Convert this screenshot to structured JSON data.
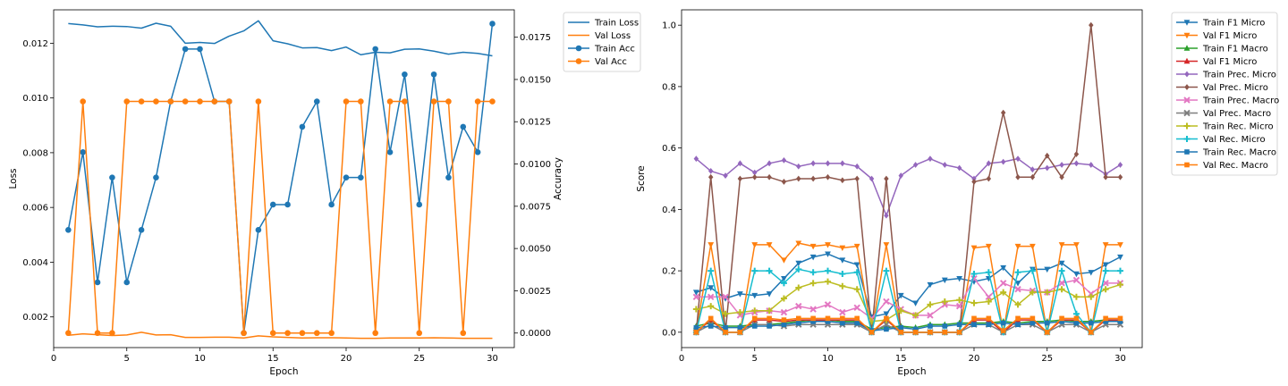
{
  "chart_data": [
    {
      "type": "line",
      "xlabel": "Epoch",
      "ylabel": "Loss",
      "y2label": "Accuracy",
      "xlim": [
        0,
        31.5
      ],
      "ylim": [
        0.00088,
        0.01322
      ],
      "y2lim": [
        -0.00086,
        0.01912
      ],
      "xticks": [
        "0",
        "5",
        "10",
        "15",
        "20",
        "25",
        "30"
      ],
      "yticks": [
        "0.002",
        "0.004",
        "0.006",
        "0.008",
        "0.010",
        "0.012"
      ],
      "y2ticks": [
        "0.0000",
        "0.0025",
        "0.0050",
        "0.0075",
        "0.0100",
        "0.0125",
        "0.0150",
        "0.0175"
      ],
      "legend_position": "outside-top-right",
      "x": [
        1,
        2,
        3,
        4,
        5,
        6,
        7,
        8,
        9,
        10,
        11,
        12,
        13,
        14,
        15,
        16,
        17,
        18,
        19,
        20,
        21,
        22,
        23,
        24,
        25,
        26,
        27,
        28,
        29,
        30
      ],
      "series": [
        {
          "name": "Train Loss",
          "axis": "left",
          "marker": "none",
          "color": "#1f77b4",
          "values": [
            0.01272,
            0.01267,
            0.0126,
            0.01262,
            0.01261,
            0.01255,
            0.01273,
            0.01262,
            0.012,
            0.01203,
            0.01199,
            0.01226,
            0.01245,
            0.01282,
            0.01209,
            0.01198,
            0.01183,
            0.01184,
            0.01173,
            0.01186,
            0.01158,
            0.01167,
            0.01165,
            0.01178,
            0.01179,
            0.01171,
            0.0116,
            0.01167,
            0.01163,
            0.01154
          ]
        },
        {
          "name": "Val Loss",
          "axis": "left",
          "marker": "none",
          "color": "#ff7f0e",
          "values": [
            0.00133,
            0.00138,
            0.00135,
            0.00132,
            0.00134,
            0.00144,
            0.00134,
            0.00135,
            0.00125,
            0.00125,
            0.00126,
            0.00126,
            0.00123,
            0.00131,
            0.00127,
            0.00125,
            0.00123,
            0.00124,
            0.00124,
            0.00123,
            0.00122,
            0.00122,
            0.00123,
            0.00123,
            0.00123,
            0.00124,
            0.00123,
            0.00122,
            0.00122,
            0.00122
          ]
        },
        {
          "name": "Train Acc",
          "axis": "right",
          "marker": "circle",
          "color": "#1f77b4",
          "values": [
            0.0061,
            0.0107,
            0.003,
            0.0092,
            0.003,
            0.0061,
            0.0092,
            0.0137,
            0.0168,
            0.0168,
            0.0137,
            0.0137,
            0.0,
            0.0061,
            0.0076,
            0.0076,
            0.0122,
            0.0137,
            0.0076,
            0.0092,
            0.0092,
            0.0168,
            0.0107,
            0.0153,
            0.0076,
            0.0153,
            0.0092,
            0.0122,
            0.0107,
            0.0183
          ]
        },
        {
          "name": "Val Acc",
          "axis": "right",
          "marker": "circle",
          "color": "#ff7f0e",
          "values": [
            0.0,
            0.0137,
            0.0,
            0.0,
            0.0137,
            0.0137,
            0.0137,
            0.0137,
            0.0137,
            0.0137,
            0.0137,
            0.0137,
            0.0,
            0.0137,
            0.0,
            0.0,
            0.0,
            0.0,
            0.0,
            0.0137,
            0.0137,
            0.0,
            0.0137,
            0.0137,
            0.0,
            0.0137,
            0.0137,
            0.0,
            0.0137,
            0.0137
          ]
        }
      ]
    },
    {
      "type": "line",
      "xlabel": "Epoch",
      "ylabel": "Score",
      "xlim": [
        0,
        31.5
      ],
      "ylim": [
        -0.05,
        1.05
      ],
      "xticks": [
        "0",
        "5",
        "10",
        "15",
        "20",
        "25",
        "30"
      ],
      "yticks": [
        "0.0",
        "0.2",
        "0.4",
        "0.6",
        "0.8",
        "1.0"
      ],
      "legend_position": "outside-top-right",
      "x": [
        1,
        2,
        3,
        4,
        5,
        6,
        7,
        8,
        9,
        10,
        11,
        12,
        13,
        14,
        15,
        16,
        17,
        18,
        19,
        20,
        21,
        22,
        23,
        24,
        25,
        26,
        27,
        28,
        29,
        30
      ],
      "series": [
        {
          "name": "Train F1 Micro",
          "marker": "triangle-down",
          "color": "#1f77b4",
          "values": [
            0.13,
            0.145,
            0.11,
            0.125,
            0.12,
            0.125,
            0.175,
            0.225,
            0.245,
            0.255,
            0.235,
            0.22,
            0.05,
            0.06,
            0.12,
            0.095,
            0.155,
            0.17,
            0.175,
            0.165,
            0.175,
            0.21,
            0.16,
            0.205,
            0.205,
            0.225,
            0.19,
            0.195,
            0.22,
            0.245
          ]
        },
        {
          "name": "Val F1 Micro",
          "marker": "triangle-down",
          "color": "#ff7f0e",
          "values": [
            0.0,
            0.285,
            0.0,
            0.0,
            0.285,
            0.285,
            0.235,
            0.29,
            0.28,
            0.285,
            0.275,
            0.28,
            0.0,
            0.285,
            0.0,
            0.0,
            0.0,
            0.0,
            0.0,
            0.275,
            0.28,
            0.0,
            0.28,
            0.28,
            0.0,
            0.285,
            0.285,
            0.0,
            0.285,
            0.285
          ]
        },
        {
          "name": "Train F1 Macro",
          "marker": "triangle-up",
          "color": "#2ca02c",
          "values": [
            0.02,
            0.03,
            0.02,
            0.02,
            0.025,
            0.025,
            0.03,
            0.035,
            0.04,
            0.04,
            0.035,
            0.035,
            0.01,
            0.015,
            0.02,
            0.015,
            0.025,
            0.025,
            0.03,
            0.03,
            0.03,
            0.035,
            0.03,
            0.035,
            0.035,
            0.04,
            0.035,
            0.035,
            0.04,
            0.04
          ]
        },
        {
          "name": "Val F1 Micro",
          "marker": "triangle-up",
          "color": "#d62728",
          "values": [
            0.0,
            0.04,
            0.0,
            0.0,
            0.04,
            0.04,
            0.035,
            0.04,
            0.04,
            0.04,
            0.04,
            0.04,
            0.0,
            0.04,
            0.0,
            0.0,
            0.0,
            0.0,
            0.0,
            0.04,
            0.04,
            0.0,
            0.04,
            0.04,
            0.0,
            0.04,
            0.04,
            0.0,
            0.04,
            0.04
          ]
        },
        {
          "name": "Train Prec. Micro",
          "marker": "diamond",
          "color": "#9467bd",
          "values": [
            0.565,
            0.525,
            0.51,
            0.55,
            0.52,
            0.55,
            0.56,
            0.54,
            0.55,
            0.55,
            0.55,
            0.54,
            0.5,
            0.38,
            0.51,
            0.545,
            0.565,
            0.545,
            0.535,
            0.5,
            0.55,
            0.555,
            0.565,
            0.53,
            0.535,
            0.545,
            0.55,
            0.545,
            0.515,
            0.545
          ]
        },
        {
          "name": "Val Prec. Micro",
          "marker": "diamond",
          "color": "#8c564b",
          "values": [
            0.0,
            0.505,
            0.0,
            0.5,
            0.505,
            0.505,
            0.49,
            0.5,
            0.5,
            0.505,
            0.495,
            0.5,
            0.0,
            0.5,
            0.0,
            0.0,
            0.0,
            0.0,
            0.0,
            0.49,
            0.5,
            0.715,
            0.505,
            0.505,
            0.575,
            0.505,
            0.58,
            1.0,
            0.505,
            0.505
          ]
        },
        {
          "name": "Train Prec. Macro",
          "marker": "x",
          "color": "#e377c2",
          "values": [
            0.115,
            0.115,
            0.115,
            0.055,
            0.065,
            0.07,
            0.065,
            0.085,
            0.075,
            0.09,
            0.065,
            0.08,
            0.045,
            0.1,
            0.075,
            0.055,
            0.055,
            0.09,
            0.085,
            0.175,
            0.115,
            0.16,
            0.14,
            0.135,
            0.13,
            0.16,
            0.17,
            0.125,
            0.16,
            0.16
          ]
        },
        {
          "name": "Val Prec. Macro",
          "marker": "x",
          "color": "#7f7f7f",
          "values": [
            0.0,
            0.025,
            0.0,
            0.0,
            0.025,
            0.025,
            0.02,
            0.025,
            0.025,
            0.025,
            0.025,
            0.025,
            0.0,
            0.025,
            0.0,
            0.0,
            0.0,
            0.0,
            0.0,
            0.025,
            0.025,
            0.0,
            0.025,
            0.025,
            0.0,
            0.025,
            0.025,
            0.0,
            0.025,
            0.025
          ]
        },
        {
          "name": "Train Rec. Micro",
          "marker": "plus",
          "color": "#bcbd22",
          "values": [
            0.075,
            0.085,
            0.06,
            0.065,
            0.07,
            0.07,
            0.11,
            0.145,
            0.16,
            0.165,
            0.15,
            0.14,
            0.035,
            0.04,
            0.07,
            0.055,
            0.09,
            0.1,
            0.105,
            0.095,
            0.1,
            0.13,
            0.09,
            0.13,
            0.13,
            0.14,
            0.115,
            0.115,
            0.14,
            0.155
          ]
        },
        {
          "name": "Val Rec. Micro",
          "marker": "plus",
          "color": "#17becf",
          "values": [
            0.0,
            0.2,
            0.0,
            0.0,
            0.2,
            0.2,
            0.16,
            0.205,
            0.195,
            0.2,
            0.19,
            0.195,
            0.0,
            0.2,
            0.0,
            0.0,
            0.0,
            0.0,
            0.0,
            0.19,
            0.195,
            0.0,
            0.195,
            0.2,
            0.0,
            0.2,
            0.06,
            0.0,
            0.2,
            0.2
          ]
        },
        {
          "name": "Train Rec. Macro",
          "marker": "square",
          "color": "#1f77b4",
          "values": [
            0.015,
            0.02,
            0.015,
            0.015,
            0.02,
            0.02,
            0.025,
            0.03,
            0.035,
            0.035,
            0.03,
            0.03,
            0.005,
            0.01,
            0.015,
            0.01,
            0.02,
            0.02,
            0.025,
            0.025,
            0.025,
            0.03,
            0.025,
            0.03,
            0.03,
            0.035,
            0.03,
            0.03,
            0.035,
            0.035
          ]
        },
        {
          "name": "Val Rec. Macro",
          "marker": "square",
          "color": "#ff7f0e",
          "values": [
            0.0,
            0.045,
            0.0,
            0.0,
            0.045,
            0.045,
            0.04,
            0.045,
            0.045,
            0.045,
            0.045,
            0.045,
            0.0,
            0.045,
            0.0,
            0.0,
            0.0,
            0.0,
            0.0,
            0.045,
            0.045,
            0.005,
            0.045,
            0.045,
            0.0,
            0.045,
            0.045,
            0.0,
            0.045,
            0.045
          ]
        }
      ]
    }
  ]
}
